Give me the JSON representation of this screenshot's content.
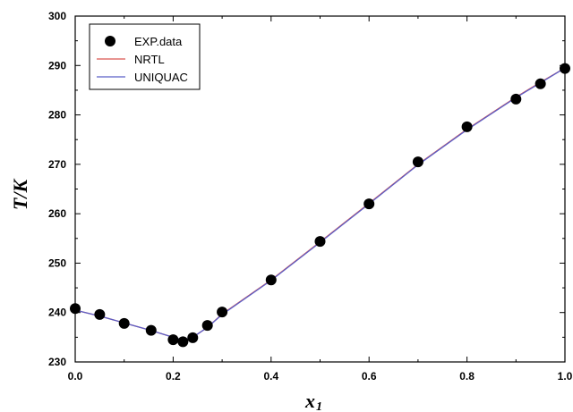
{
  "chart_data": {
    "type": "line",
    "xlabel": "x",
    "xlabel_subscript": "1",
    "ylabel": "T/K",
    "xlim": [
      0.0,
      1.0
    ],
    "ylim": [
      230,
      300
    ],
    "xticks": [
      0.0,
      0.2,
      0.4,
      0.6,
      0.8,
      1.0
    ],
    "xtick_labels": [
      "0.0",
      "0.2",
      "0.4",
      "0.6",
      "0.8",
      "1.0"
    ],
    "yticks": [
      230,
      240,
      250,
      260,
      270,
      280,
      290,
      300
    ],
    "ytick_labels": [
      "230",
      "240",
      "250",
      "260",
      "270",
      "280",
      "290",
      "300"
    ],
    "legend_position": "top-left",
    "series": [
      {
        "name": "EXP.data",
        "kind": "scatter",
        "color": "#000000",
        "x": [
          0.0,
          0.05,
          0.1,
          0.155,
          0.2,
          0.22,
          0.24,
          0.27,
          0.3,
          0.4,
          0.5,
          0.6,
          0.7,
          0.8,
          0.9,
          0.95,
          1.0
        ],
        "y": [
          240.8,
          239.6,
          237.8,
          236.4,
          234.5,
          234.1,
          234.9,
          237.4,
          240.1,
          246.6,
          254.4,
          262.0,
          270.5,
          277.6,
          283.2,
          286.3,
          289.4
        ]
      },
      {
        "name": "NRTL",
        "kind": "line",
        "color": "#d9534f",
        "x": [
          0.0,
          0.05,
          0.1,
          0.15,
          0.2,
          0.22,
          0.24,
          0.27,
          0.3,
          0.4,
          0.5,
          0.6,
          0.7,
          0.8,
          0.9,
          0.95,
          1.0
        ],
        "y": [
          240.5,
          239.3,
          237.9,
          236.5,
          235.0,
          234.4,
          235.0,
          237.0,
          239.7,
          246.6,
          254.3,
          262.1,
          270.0,
          277.1,
          283.6,
          286.6,
          289.5
        ]
      },
      {
        "name": "UNIQUAC",
        "kind": "line",
        "color": "#5b5fc7",
        "x": [
          0.0,
          0.05,
          0.1,
          0.15,
          0.2,
          0.22,
          0.24,
          0.27,
          0.3,
          0.4,
          0.5,
          0.6,
          0.7,
          0.8,
          0.9,
          0.95,
          1.0
        ],
        "y": [
          240.5,
          239.3,
          237.9,
          236.5,
          235.0,
          234.4,
          235.0,
          237.0,
          239.6,
          246.5,
          254.2,
          262.0,
          269.9,
          277.0,
          283.5,
          286.5,
          289.5
        ]
      }
    ]
  }
}
